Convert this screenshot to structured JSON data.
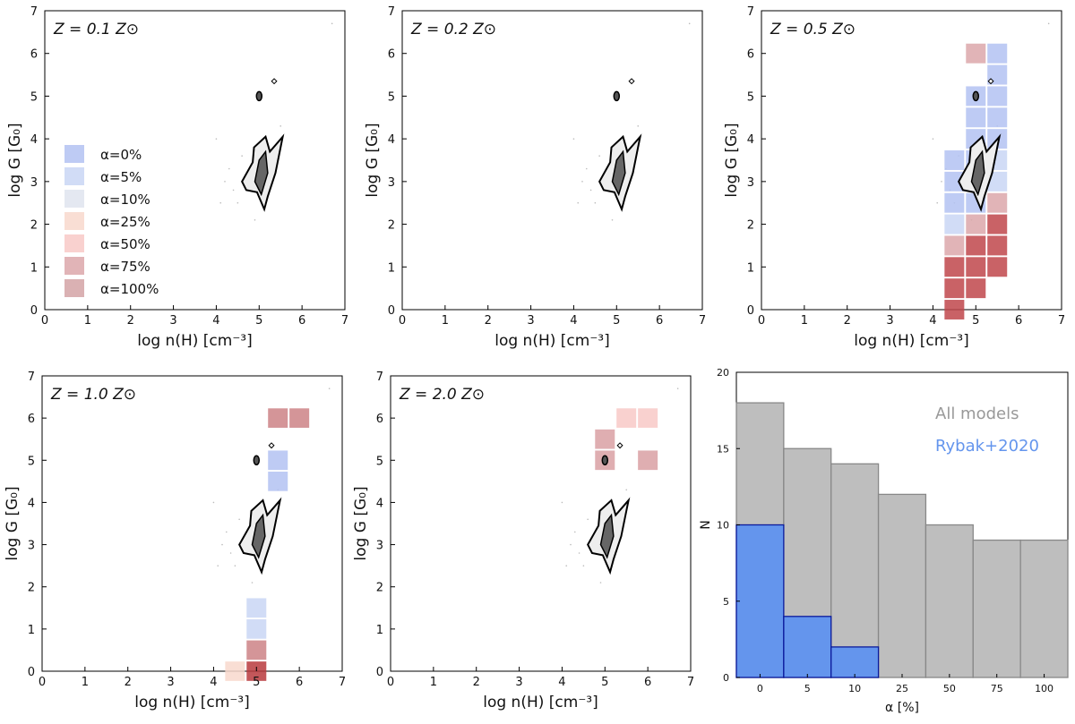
{
  "chart_data": [
    {
      "type": "square-map",
      "annotation": "Z = 0.1 Z⊙",
      "xlabel": "log n(H) [cm⁻³]",
      "ylabel": "log G [G₀]",
      "xlim": [
        0,
        7
      ],
      "ylim": [
        0,
        7
      ],
      "xticks": [
        0,
        1,
        2,
        3,
        4,
        5,
        6,
        7
      ],
      "yticks": [
        0,
        1,
        2,
        3,
        4,
        5,
        6,
        7
      ],
      "legend": "left",
      "series": [
        {
          "name": "α=0%",
          "color": "#b3c2f2",
          "x": [],
          "y": []
        },
        {
          "name": "α=5%",
          "color": "#c9d6f4",
          "x": [],
          "y": []
        },
        {
          "name": "α=10%",
          "color": "#dfe4ee",
          "x": [],
          "y": []
        },
        {
          "name": "α=25%",
          "color": "#f8d8cc",
          "x": [],
          "y": []
        },
        {
          "name": "α=50%",
          "color": "#f8c9c7",
          "x": [],
          "y": []
        },
        {
          "name": "α=75%",
          "color": "#dca7aa",
          "x": [],
          "y": []
        },
        {
          "name": "α=100%",
          "color": "#d3a3a6",
          "x": [],
          "y": []
        }
      ]
    },
    {
      "type": "square-map",
      "annotation": "Z = 0.2 Z⊙",
      "xlabel": "log n(H) [cm⁻³]",
      "ylabel": "log G [G₀]",
      "xlim": [
        0,
        7
      ],
      "ylim": [
        0,
        7
      ],
      "xticks": [
        0,
        1,
        2,
        3,
        4,
        5,
        6,
        7
      ],
      "yticks": [
        0,
        1,
        2,
        3,
        4,
        5,
        6,
        7
      ],
      "series": []
    },
    {
      "type": "square-map",
      "annotation": "Z = 0.5 Z⊙",
      "xlabel": "log n(H) [cm⁻³]",
      "ylabel": "log G [G₀]",
      "xlim": [
        0,
        7
      ],
      "ylim": [
        0,
        7
      ],
      "xticks": [
        0,
        1,
        2,
        3,
        4,
        5,
        6,
        7
      ],
      "yticks": [
        0,
        1,
        2,
        3,
        4,
        5,
        6,
        7
      ],
      "series": [
        {
          "color": "#b3c2f2",
          "x": [
            5.5,
            5.5,
            5.5,
            5.5,
            5.5,
            5.0,
            5.0,
            5.0,
            5.0,
            5.0,
            5.0,
            4.5,
            4.5,
            4.5
          ],
          "y": [
            6.0,
            5.5,
            5.0,
            4.5,
            4.0,
            5.0,
            4.5,
            4.0,
            3.5,
            3.0,
            2.5,
            3.5,
            3.0,
            2.5
          ]
        },
        {
          "color": "#c9d6f4",
          "x": [
            5.5,
            5.5,
            4.5
          ],
          "y": [
            3.5,
            3.0,
            2.0
          ]
        },
        {
          "color": "#dca7aa",
          "x": [
            5.0,
            5.0,
            5.5,
            4.5
          ],
          "y": [
            6.0,
            2.0,
            2.5,
            1.5
          ]
        },
        {
          "color": "#c0474b",
          "x": [
            5.5,
            5.5,
            5.5,
            5.0,
            5.0,
            5.0,
            4.5,
            4.5,
            4.5
          ],
          "y": [
            2.0,
            1.5,
            1.0,
            1.5,
            1.0,
            0.5,
            1.0,
            0.5,
            0.0
          ]
        }
      ]
    },
    {
      "type": "square-map",
      "annotation": "Z = 1.0 Z⊙",
      "xlabel": "log n(H) [cm⁻³]",
      "ylabel": "log G [G₀]",
      "xlim": [
        0,
        7
      ],
      "ylim": [
        0,
        7
      ],
      "xticks": [
        0,
        1,
        2,
        3,
        4,
        5,
        6,
        7
      ],
      "yticks": [
        0,
        1,
        2,
        3,
        4,
        5,
        6,
        7
      ],
      "series": [
        {
          "color": "#b3c2f2",
          "x": [
            5.5,
            5.5
          ],
          "y": [
            5.0,
            4.5
          ]
        },
        {
          "color": "#c9d6f4",
          "x": [
            5.0,
            5.0
          ],
          "y": [
            1.5,
            1.0
          ]
        },
        {
          "color": "#f8d8cc",
          "x": [
            4.5
          ],
          "y": [
            0.0
          ]
        },
        {
          "color": "#cd8386",
          "x": [
            5.5,
            6.0,
            5.0
          ],
          "y": [
            6.0,
            6.0,
            0.5
          ]
        },
        {
          "color": "#b8393d",
          "x": [
            5.0
          ],
          "y": [
            0.0
          ]
        }
      ]
    },
    {
      "type": "square-map",
      "annotation": "Z = 2.0 Z⊙",
      "xlabel": "log n(H) [cm⁻³]",
      "ylabel": "log G [G₀]",
      "xlim": [
        0,
        7
      ],
      "ylim": [
        0,
        7
      ],
      "xticks": [
        0,
        1,
        2,
        3,
        4,
        5,
        6,
        7
      ],
      "yticks": [
        0,
        1,
        2,
        3,
        4,
        5,
        6,
        7
      ],
      "series": [
        {
          "color": "#f8c9c7",
          "x": [
            5.5,
            6.0
          ],
          "y": [
            6.0,
            6.0
          ]
        },
        {
          "color": "#d9a0a3",
          "x": [
            5.0,
            5.0,
            6.0
          ],
          "y": [
            5.5,
            5.0,
            5.0
          ]
        }
      ]
    },
    {
      "type": "histogram",
      "xlabel": "α [%]",
      "ylabel": "N",
      "categories": [
        "0",
        "5",
        "10",
        "25",
        "50",
        "75",
        "100"
      ],
      "ylim": [
        0,
        20
      ],
      "yticks": [
        0,
        5,
        10,
        15,
        20
      ],
      "series": [
        {
          "name": "All models",
          "color": "#bebebe",
          "values": [
            18,
            15,
            14,
            12,
            10,
            9,
            9
          ]
        },
        {
          "name": "Rybak+2020",
          "color": "#6495ed",
          "values": [
            10,
            4,
            2,
            0,
            0,
            0,
            0
          ]
        }
      ]
    }
  ]
}
